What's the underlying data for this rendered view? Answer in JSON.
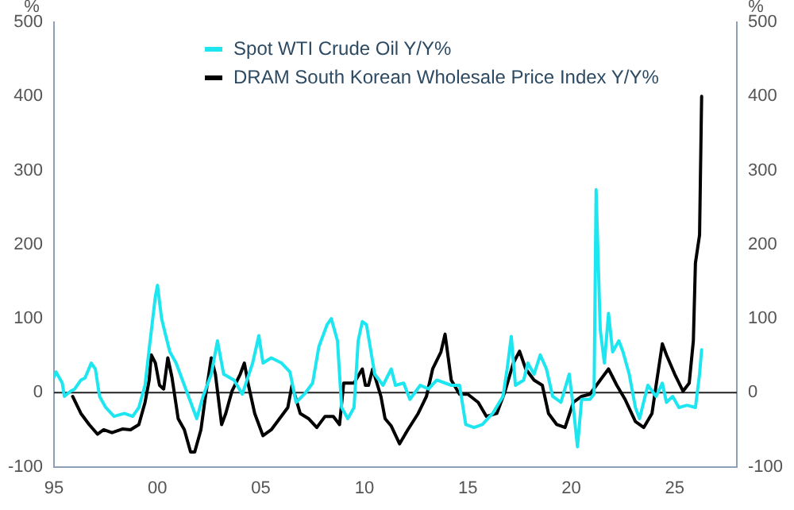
{
  "chart_data": {
    "type": "line",
    "ylabel": "%",
    "y2label": "%",
    "legend": "top",
    "grid": false,
    "xlim": [
      1995,
      2028
    ],
    "xticks": [
      {
        "value": 1995,
        "label": "95"
      },
      {
        "value": 2000,
        "label": "00"
      },
      {
        "value": 2005,
        "label": "05"
      },
      {
        "value": 2010,
        "label": "10"
      },
      {
        "value": 2015,
        "label": "15"
      },
      {
        "value": 2020,
        "label": "20"
      },
      {
        "value": 2025,
        "label": "25"
      }
    ],
    "ylim": [
      -100,
      500
    ],
    "yticks": [
      -100,
      0,
      100,
      200,
      300,
      400,
      500
    ],
    "y2lim": [
      -100,
      500
    ],
    "y2ticks": [
      -100,
      0,
      100,
      200,
      300,
      400,
      500
    ],
    "ref_lines": [
      {
        "axis": "y",
        "value": 0,
        "color": "#222222"
      }
    ],
    "series": [
      {
        "name": "Spot WTI Crude Oil Y/Y%",
        "color": "#1ee6f0",
        "x": [
          1995.0,
          1995.1,
          1995.4,
          1995.5,
          1995.8,
          1996.0,
          1996.3,
          1996.5,
          1996.8,
          1997.0,
          1997.2,
          1997.5,
          1997.9,
          1998.4,
          1998.8,
          1999.1,
          1999.4,
          1999.6,
          1999.9,
          2000.0,
          2000.2,
          2000.4,
          2000.6,
          2000.9,
          2001.3,
          2001.7,
          2001.9,
          2002.2,
          2002.6,
          2002.9,
          2003.2,
          2003.7,
          2004.1,
          2004.6,
          2004.9,
          2005.1,
          2005.5,
          2006.0,
          2006.4,
          2006.7,
          2007.1,
          2007.5,
          2007.8,
          2008.2,
          2008.4,
          2008.7,
          2008.9,
          2009.2,
          2009.5,
          2009.7,
          2009.9,
          2010.1,
          2010.5,
          2010.9,
          2011.3,
          2011.5,
          2011.9,
          2012.2,
          2012.7,
          2013.1,
          2013.5,
          2014.2,
          2014.6,
          2014.9,
          2015.3,
          2015.7,
          2016.2,
          2016.7,
          2016.9,
          2017.1,
          2017.3,
          2017.7,
          2017.9,
          2018.2,
          2018.5,
          2018.8,
          2019.1,
          2019.5,
          2019.9,
          2020.1,
          2020.3,
          2020.5,
          2020.9,
          2021.1,
          2021.2,
          2021.4,
          2021.6,
          2021.8,
          2022.0,
          2022.3,
          2022.5,
          2022.8,
          2023.1,
          2023.3,
          2023.7,
          2024.1,
          2024.4,
          2024.6,
          2024.9,
          2025.2,
          2025.6,
          2026.0,
          2026.2,
          2026.3
        ],
        "values": [
          21,
          28,
          13,
          -5,
          2,
          5,
          17,
          20,
          40,
          32,
          -5,
          -20,
          -32,
          -28,
          -32,
          -20,
          10,
          59,
          130,
          145,
          100,
          77,
          55,
          40,
          10,
          -20,
          -35,
          -5,
          25,
          70,
          25,
          17,
          -2,
          40,
          77,
          40,
          47,
          40,
          28,
          -13,
          -2,
          13,
          62,
          92,
          100,
          70,
          -20,
          -35,
          -20,
          70,
          96,
          92,
          25,
          10,
          32,
          10,
          13,
          -9,
          10,
          5,
          17,
          10,
          10,
          -43,
          -47,
          -43,
          -28,
          -5,
          32,
          76,
          10,
          17,
          40,
          25,
          51,
          32,
          -5,
          -13,
          25,
          -20,
          -73,
          -9,
          -9,
          -2,
          274,
          85,
          40,
          107,
          55,
          70,
          55,
          25,
          -20,
          -35,
          10,
          -5,
          13,
          -13,
          -5,
          -20,
          -17,
          -20,
          25,
          58
        ]
      },
      {
        "name": "DRAM South Korean Wholesale Price Index Y/Y%",
        "color": "#000000",
        "x": [
          1995.9,
          1996.3,
          1996.7,
          1997.1,
          1997.4,
          1997.8,
          1998.3,
          1998.7,
          1999.1,
          1999.4,
          1999.6,
          1999.7,
          1999.9,
          2000.1,
          2000.3,
          2000.5,
          2000.7,
          2001.0,
          2001.3,
          2001.6,
          2001.8,
          2002.1,
          2002.3,
          2002.6,
          2002.8,
          2003.1,
          2003.3,
          2003.6,
          2004.0,
          2004.2,
          2004.4,
          2004.7,
          2005.1,
          2005.5,
          2005.9,
          2006.3,
          2006.5,
          2006.9,
          2007.3,
          2007.7,
          2008.1,
          2008.5,
          2008.8,
          2009.0,
          2009.5,
          2009.9,
          2010.05,
          2010.2,
          2010.4,
          2010.8,
          2011.0,
          2011.3,
          2011.7,
          2012.1,
          2012.6,
          2013.0,
          2013.3,
          2013.7,
          2013.9,
          2014.2,
          2014.6,
          2015.0,
          2015.5,
          2015.9,
          2016.4,
          2016.8,
          2017.2,
          2017.5,
          2017.8,
          2018.2,
          2018.6,
          2018.9,
          2019.3,
          2019.7,
          2020.1,
          2020.5,
          2020.9,
          2021.4,
          2021.8,
          2022.2,
          2022.6,
          2023.1,
          2023.5,
          2023.9,
          2024.1,
          2024.4,
          2024.6,
          2025.0,
          2025.4,
          2025.7,
          2025.9,
          2026.0,
          2026.2,
          2026.3
        ],
        "values": [
          -5,
          -28,
          -43,
          -56,
          -50,
          -54,
          -49,
          -50,
          -43,
          -13,
          17,
          51,
          40,
          10,
          5,
          47,
          21,
          -35,
          -50,
          -80,
          -80,
          -50,
          -9,
          47,
          25,
          -43,
          -28,
          2,
          25,
          40,
          10,
          -28,
          -58,
          -50,
          -35,
          -20,
          10,
          -28,
          -35,
          -47,
          -32,
          -32,
          -43,
          13,
          13,
          32,
          10,
          10,
          32,
          -5,
          -35,
          -45,
          -69,
          -50,
          -28,
          -5,
          32,
          55,
          79,
          17,
          -2,
          -2,
          -13,
          -32,
          -28,
          2,
          40,
          56,
          32,
          17,
          10,
          -28,
          -43,
          -47,
          -13,
          -5,
          -2,
          17,
          32,
          10,
          -9,
          -39,
          -47,
          -28,
          10,
          66,
          51,
          25,
          2,
          13,
          70,
          175,
          213,
          400
        ]
      }
    ]
  }
}
